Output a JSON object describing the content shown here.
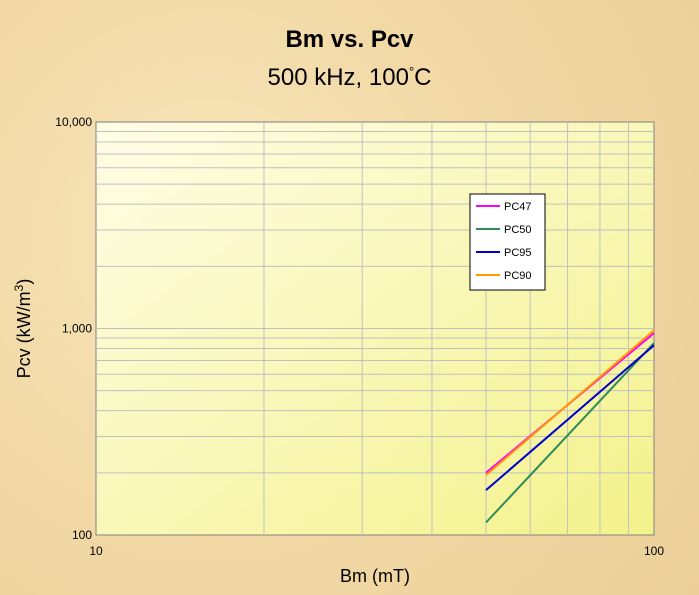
{
  "chart_data": {
    "type": "line",
    "title": "Bm vs. Pcv",
    "subtitle": "500 kHz, 100°C",
    "xlabel": "Bm (mT)",
    "ylabel": "Pcv (kW/m3)",
    "xscale": "log",
    "yscale": "log",
    "xlim": [
      10,
      100
    ],
    "ylim": [
      100,
      10000
    ],
    "x_ticks": [
      10,
      100
    ],
    "x_tick_labels": [
      "10",
      "100"
    ],
    "y_ticks": [
      100,
      1000,
      10000
    ],
    "y_tick_labels": [
      "100",
      "1,000",
      "10,000"
    ],
    "grid": true,
    "legend_position": "inside-right",
    "series": [
      {
        "name": "PC47",
        "color": "#ff00ff",
        "x": [
          50,
          100
        ],
        "y": [
          200,
          950
        ]
      },
      {
        "name": "PC50",
        "color": "#2e8b57",
        "x": [
          50,
          100
        ],
        "y": [
          115,
          850
        ]
      },
      {
        "name": "PC95",
        "color": "#0000cc",
        "x": [
          50,
          100
        ],
        "y": [
          165,
          830
        ]
      },
      {
        "name": "PC90",
        "color": "#ff9900",
        "x": [
          50,
          100
        ],
        "y": [
          195,
          980
        ]
      }
    ]
  }
}
